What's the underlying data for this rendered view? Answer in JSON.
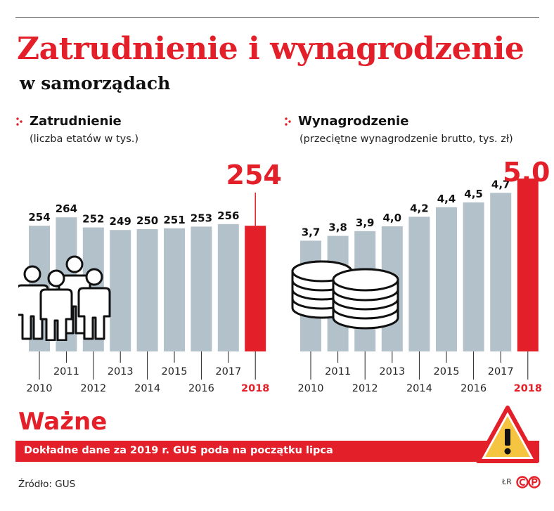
{
  "header": {
    "title": "Zatrudnienie i wynagrodzenie",
    "subtitle": "w samorządach"
  },
  "colors": {
    "accent": "#e3202a",
    "bar": "#b3c1cb",
    "highlight": "#e3202a"
  },
  "left_section": {
    "heading": "Zatrudnienie",
    "subheading": "(liczba etatów w tys.)"
  },
  "right_section": {
    "heading": "Wynagrodzenie",
    "subheading": "(przeciętne wynagrodzenie brutto, tys. zł)"
  },
  "chart_data": [
    {
      "type": "bar",
      "title": "Zatrudnienie",
      "subtitle": "(liczba etatów w tys.)",
      "categories": [
        "2010",
        "2011",
        "2012",
        "2013",
        "2014",
        "2015",
        "2016",
        "2017",
        "2018"
      ],
      "values": [
        254,
        264,
        252,
        249,
        250,
        251,
        253,
        256,
        254
      ],
      "labels": [
        "254",
        "264",
        "252",
        "249",
        "250",
        "251",
        "253",
        "256",
        "254"
      ],
      "highlight_index": 8,
      "ylim": [
        0,
        300
      ],
      "grid": false,
      "icon": "people-icon"
    },
    {
      "type": "bar",
      "title": "Wynagrodzenie",
      "subtitle": "(przeciętne wynagrodzenie brutto, tys. zł)",
      "categories": [
        "2010",
        "2011",
        "2012",
        "2013",
        "2014",
        "2015",
        "2016",
        "2017",
        "2018"
      ],
      "values": [
        3.7,
        3.8,
        3.9,
        4.0,
        4.2,
        4.4,
        4.5,
        4.7,
        5.0
      ],
      "labels": [
        "3,7",
        "3,8",
        "3,9",
        "4,0",
        "4,2",
        "4,4",
        "4,5",
        "4,7",
        "5,0"
      ],
      "highlight_index": 8,
      "ylim": [
        0,
        5.5
      ],
      "grid": false,
      "icon": "coins-icon"
    }
  ],
  "notice": {
    "heading": "Ważne",
    "text": "Dokładne dane za 2019 r. GUS poda na początku lipca",
    "icon": "warning-icon"
  },
  "footer": {
    "source": "Źródło: GUS",
    "credit": "ŁR"
  }
}
